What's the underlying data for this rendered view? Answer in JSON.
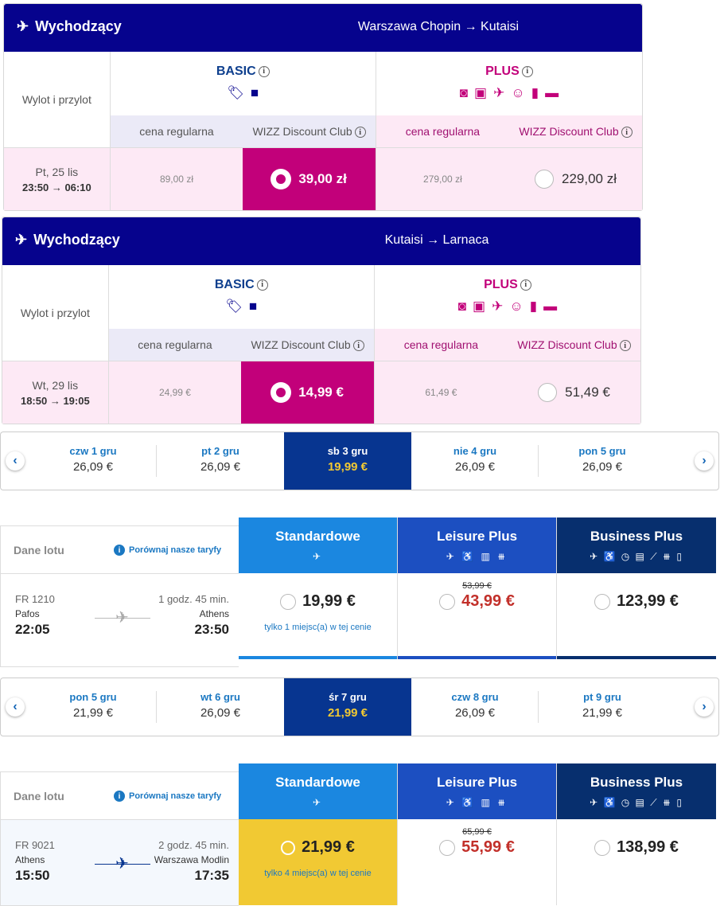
{
  "colors": {
    "wizz_navy": "#06038d",
    "wizz_pink": "#c2007a",
    "wizz_light_pink": "#fde9f5",
    "wizz_light_blue": "#ebeaf7",
    "ry_blue": "#1b87e0",
    "ry_mid": "#1c4fc1",
    "ry_dark": "#072f6e",
    "ry_yellow": "#f1c933",
    "ry_price_red": "#c2302a"
  },
  "wizz": [
    {
      "label": "Wychodzący",
      "route": "Warszawa Chopin → Kutaisi",
      "col1": "Wylot i przylot",
      "basic": "BASIC",
      "plus": "PLUS",
      "sub_regular": "cena regularna",
      "sub_club": "WIZZ Discount Club",
      "date": "Pt, 25 lis",
      "times": "23:50 → 06:10",
      "basic_regular": "89,00 zł",
      "basic_club": "39,00 zł",
      "plus_regular": "279,00 zł",
      "plus_club": "229,00 zł",
      "basic_icons": [
        "tag-icon",
        "small-bag-icon"
      ],
      "plus_icons": [
        "seat-icon",
        "priority-seat-icon",
        "departure-icon",
        "family-icon",
        "trolley-icon",
        "checked-bag-icon"
      ]
    },
    {
      "label": "Wychodzący",
      "route": "Kutaisi → Larnaca",
      "col1": "Wylot i przylot",
      "basic": "BASIC",
      "plus": "PLUS",
      "sub_regular": "cena regularna",
      "sub_club": "WIZZ Discount Club",
      "date": "Wt, 29 lis",
      "times": "18:50 → 19:05",
      "basic_regular": "24,99 €",
      "basic_club": "14,99 €",
      "plus_regular": "61,49 €",
      "plus_club": "51,49 €"
    }
  ],
  "dates1": [
    {
      "l": "czw 1 gru",
      "p": "26,09 €"
    },
    {
      "l": "pt 2 gru",
      "p": "26,09 €"
    },
    {
      "l": "sb 3 gru",
      "p": "19,99 €"
    },
    {
      "l": "nie 4 gru",
      "p": "26,09 €"
    },
    {
      "l": "pon 5 gru",
      "p": "26,09 €"
    }
  ],
  "dates2": [
    {
      "l": "pon 5 gru",
      "p": "21,99 €"
    },
    {
      "l": "wt 6 gru",
      "p": "26,09 €"
    },
    {
      "l": "śr 7 gru",
      "p": "21,99 €"
    },
    {
      "l": "czw 8 gru",
      "p": "26,09 €"
    },
    {
      "l": "pt 9 gru",
      "p": "21,99 €"
    }
  ],
  "ry": [
    {
      "dane": "Dane lotu",
      "compare": "Porównaj nasze taryfy",
      "flight": "FR 1210",
      "dur": "1 godz. 45 min.",
      "from": "Pafos",
      "to": "Athens",
      "dep": "22:05",
      "arr": "23:50",
      "std": "Standardowe",
      "leis": "Leisure Plus",
      "bus": "Business Plus",
      "std_price": "19,99 €",
      "std_note": "tylko 1 miejsc(a) w tej cenie",
      "leis_old": "53,99 €",
      "leis_price": "43,99 €",
      "bus_price": "123,99 €"
    },
    {
      "dane": "Dane lotu",
      "compare": "Porównaj nasze taryfy",
      "flight": "FR 9021",
      "dur": "2 godz. 45 min.",
      "from": "Athens",
      "to": "Warszawa Modlin",
      "dep": "15:50",
      "arr": "17:35",
      "std": "Standardowe",
      "leis": "Leisure Plus",
      "bus": "Business Plus",
      "std_price": "21,99 €",
      "std_note": "tylko 4 miejsc(a) w tej cenie",
      "leis_old": "65,99 €",
      "leis_price": "55,99 €",
      "bus_price": "138,99 €"
    }
  ]
}
